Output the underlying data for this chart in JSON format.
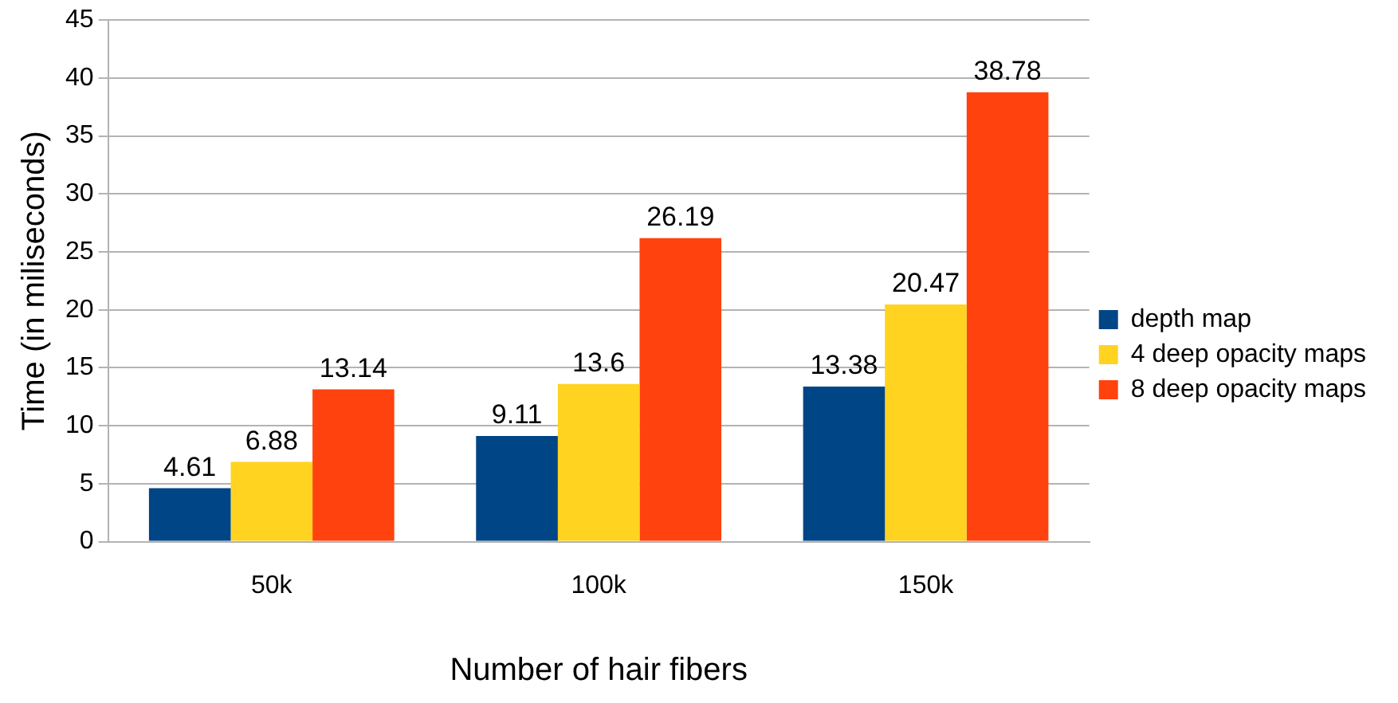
{
  "chart_data": {
    "type": "bar",
    "xlabel": "Number of hair fibers",
    "ylabel": "Time (in miliseconds)",
    "categories": [
      "50k",
      "100k",
      "150k"
    ],
    "series": [
      {
        "name": "depth map",
        "color": "#004586",
        "values": [
          4.61,
          9.11,
          13.38
        ]
      },
      {
        "name": "4 deep opacity maps",
        "color": "#ffd320",
        "values": [
          6.88,
          13.6,
          20.47
        ]
      },
      {
        "name": "8 deep opacity maps",
        "color": "#ff420e",
        "values": [
          13.14,
          26.19,
          38.78
        ]
      }
    ],
    "ylim": [
      0,
      45
    ],
    "yticks": [
      0,
      5,
      10,
      15,
      20,
      25,
      30,
      35,
      40,
      45
    ],
    "grid": "y",
    "legend": "right",
    "data_labels": true
  }
}
